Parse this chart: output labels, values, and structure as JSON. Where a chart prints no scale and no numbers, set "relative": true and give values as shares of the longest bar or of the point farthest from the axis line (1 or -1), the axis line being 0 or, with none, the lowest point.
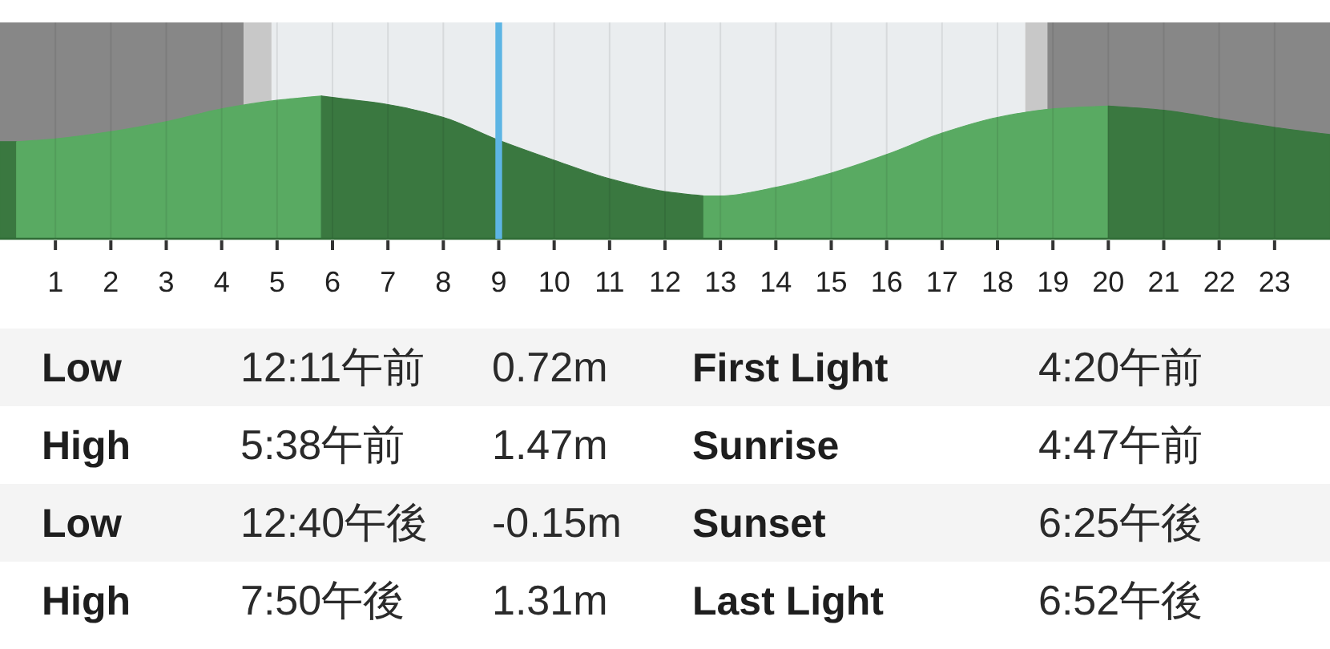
{
  "chart_data": [
    {
      "type": "area",
      "relative": true,
      "xlim": [
        0,
        24
      ],
      "xticks": [
        1,
        2,
        3,
        4,
        5,
        6,
        7,
        8,
        9,
        10,
        11,
        12,
        13,
        14,
        15,
        16,
        17,
        18,
        19,
        20,
        21,
        22,
        23
      ],
      "grid": "x",
      "bands": [
        {
          "axis": "x",
          "from": 0,
          "to": 4.4,
          "color": "#878787"
        },
        {
          "axis": "x",
          "from": 4.4,
          "to": 4.9,
          "color": "#c8c8c8"
        },
        {
          "axis": "x",
          "from": 4.9,
          "to": 18.5,
          "color": "#eaedef"
        },
        {
          "axis": "x",
          "from": 18.5,
          "to": 18.9,
          "color": "#c8c8c8"
        },
        {
          "axis": "x",
          "from": 18.9,
          "to": 24,
          "color": "#878787"
        }
      ],
      "ref_lines": [
        {
          "axis": "x",
          "value": 9,
          "color": "#5db5e4"
        }
      ],
      "series": [
        {
          "color": "#3a7840",
          "x": [
            0,
            0.3
          ],
          "values": [
            0.68,
            0.68
          ]
        },
        {
          "color": "#59aa62",
          "x": [
            0.3,
            1,
            2,
            3,
            4,
            5,
            5.8
          ],
          "values": [
            0.68,
            0.7,
            0.75,
            0.82,
            0.91,
            0.97,
            1
          ]
        },
        {
          "color": "#3a7840",
          "x": [
            5.8,
            6,
            7,
            8,
            9,
            10,
            11,
            12,
            12.7
          ],
          "values": [
            1,
            0.99,
            0.94,
            0.85,
            0.69,
            0.55,
            0.42,
            0.33,
            0.3
          ]
        },
        {
          "color": "#59aa62",
          "x": [
            12.7,
            13,
            14,
            15,
            16,
            17,
            18,
            19,
            20
          ],
          "values": [
            0.3,
            0.3,
            0.36,
            0.46,
            0.59,
            0.74,
            0.85,
            0.91,
            0.93
          ]
        },
        {
          "color": "#3a7840",
          "x": [
            20,
            21,
            22,
            23,
            24
          ],
          "values": [
            0.93,
            0.9,
            0.84,
            0.78,
            0.73
          ]
        }
      ]
    },
    {
      "type": "other",
      "annotations": [
        "Low",
        "12:11午前",
        "0.72m",
        "First Light",
        "4:20午前",
        "High",
        "5:38午前",
        "1.47m",
        "Sunrise",
        "4:47午前",
        "Low",
        "12:40午後",
        "-0.15m",
        "Sunset",
        "6:25午後",
        "High",
        "7:50午後",
        "1.31m",
        "Last Light",
        "6:52午後"
      ]
    }
  ]
}
